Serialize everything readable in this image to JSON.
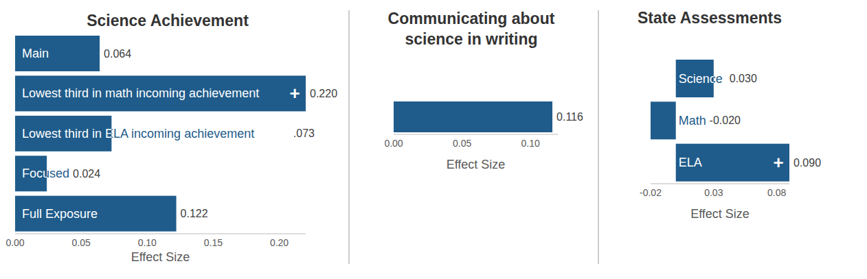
{
  "chart_data": [
    {
      "type": "bar",
      "title": "Science Achievement",
      "orientation": "horizontal",
      "categories": [
        "Main",
        "Lowest third in math incoming achievement",
        "Lowest third in ELA incoming achievement",
        "Focused",
        "Full Exposure"
      ],
      "values": [
        0.064,
        0.22,
        0.073,
        0.024,
        0.122
      ],
      "value_labels": [
        "0.064",
        "0.220",
        ".073",
        "0.024",
        "0.122"
      ],
      "data_labels": true,
      "annotations": [
        {
          "category": "Lowest third in math incoming achievement",
          "text": "+"
        }
      ],
      "color": "#1f5c8b",
      "xlabel": "Effect Size",
      "xlim": [
        0,
        0.22
      ],
      "xticks": [
        {
          "value": 0,
          "label": "0.00"
        },
        0.05,
        {
          "value": 0.1,
          "label": "0.10"
        },
        0.15,
        {
          "value": 0.2,
          "label": "0.20"
        }
      ],
      "grid": false
    },
    {
      "type": "bar",
      "title": "Communicating about science in writing",
      "orientation": "horizontal",
      "categories": [
        null
      ],
      "values": [
        0.116
      ],
      "data_labels": true,
      "color": "#1f5c8b",
      "xlabel": "Effect Size",
      "xlim": [
        0,
        0.12
      ],
      "xticks": [
        {
          "value": 0,
          "label": "0.00"
        },
        0.05,
        {
          "value": 0.1,
          "label": "0.10"
        }
      ],
      "grid": false
    },
    {
      "type": "bar",
      "title": "State Assessments",
      "orientation": "horizontal",
      "categories": [
        "Science",
        "Math",
        "ELA"
      ],
      "values": [
        0.03,
        -0.02,
        0.09
      ],
      "value_labels": [
        "0.030",
        "-0.020",
        "0.090"
      ],
      "data_labels": true,
      "annotations": [
        {
          "category": "ELA",
          "text": "+"
        }
      ],
      "color": "#1f5c8b",
      "xlabel": "Effect Size",
      "xlim": [
        -0.02,
        0.09
      ],
      "xticks": [
        -0.02,
        0.03,
        0.08
      ],
      "grid": false
    }
  ]
}
